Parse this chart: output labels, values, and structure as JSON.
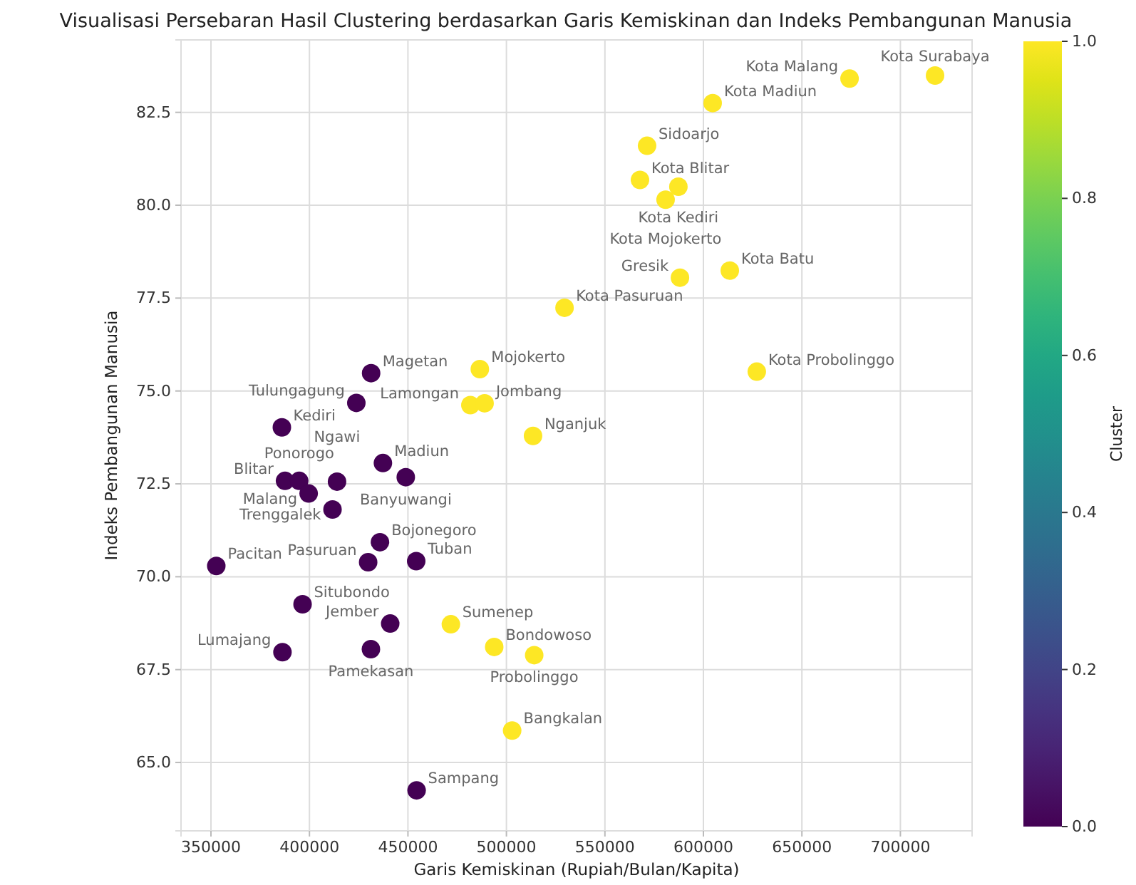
{
  "chart_data": {
    "type": "scatter",
    "title": "Visualisasi Persebaran Hasil Clustering berdasarkan Garis Kemiskinan dan Indeks Pembangunan Manusia",
    "xlabel": "Garis Kemiskinan (Rupiah/Bulan/Kapita)",
    "ylabel": "Indeks Pembangunan Manusia",
    "clabel": "Cluster",
    "xlim": [
      334800,
      736400
    ],
    "ylim": [
      63.16,
      84.45
    ],
    "xticks": [
      350000,
      400000,
      450000,
      500000,
      550000,
      600000,
      650000,
      700000
    ],
    "yticks": [
      {
        "value": 65,
        "label": "65.0"
      },
      {
        "value": 67.5,
        "label": "67.5"
      },
      {
        "value": 70,
        "label": "70.0"
      },
      {
        "value": 72.5,
        "label": "72.5"
      },
      {
        "value": 75,
        "label": "75.0"
      },
      {
        "value": 77.5,
        "label": "77.5"
      },
      {
        "value": 80,
        "label": "80.0"
      },
      {
        "value": 82.5,
        "label": "82.5"
      }
    ],
    "clim": [
      0,
      1
    ],
    "cticks": [
      {
        "value": 0,
        "label": "0.0"
      },
      {
        "value": 0.2,
        "label": "0.2"
      },
      {
        "value": 0.4,
        "label": "0.4"
      },
      {
        "value": 0.6,
        "label": "0.6"
      },
      {
        "value": 0.8,
        "label": "0.8"
      },
      {
        "value": 1,
        "label": "1.0"
      }
    ],
    "grid": true,
    "marker": "circle",
    "x": [
      717600,
      674200,
      604700,
      571400,
      567800,
      587300,
      580800,
      588100,
      613400,
      529500,
      627100,
      486500,
      481700,
      488900,
      513500,
      471800,
      493800,
      514100,
      502900,
      431300,
      423800,
      386000,
      437300,
      448900,
      387600,
      394800,
      399600,
      414000,
      411700,
      435800,
      429800,
      454200,
      352700,
      396500,
      441000,
      386300,
      431200,
      454400
    ],
    "values": [
      83.49,
      83.41,
      82.75,
      81.6,
      80.68,
      80.5,
      80.15,
      78.05,
      78.24,
      77.24,
      75.52,
      75.59,
      74.62,
      74.67,
      73.79,
      68.72,
      68.11,
      67.89,
      65.86,
      75.48,
      74.68,
      74.02,
      73.06,
      72.68,
      72.58,
      72.58,
      72.24,
      72.56,
      71.81,
      70.93,
      70.39,
      70.42,
      70.29,
      69.26,
      68.74,
      67.97,
      68.05,
      64.25
    ],
    "cvalues": [
      1,
      1,
      1,
      1,
      1,
      1,
      1,
      1,
      1,
      1,
      1,
      1,
      1,
      1,
      1,
      1,
      1,
      1,
      1,
      0,
      0,
      0,
      0,
      0,
      0,
      0,
      0,
      0,
      0,
      0,
      0,
      0,
      0,
      0,
      0,
      0,
      0,
      0
    ],
    "annotations": [
      {
        "text": "Kota Surabaya",
        "x": 717600,
        "y": 83.49
      },
      {
        "text": "Kota Malang",
        "x": 674200,
        "y": 83.41
      },
      {
        "text": "Kota Madiun",
        "x": 604700,
        "y": 82.75
      },
      {
        "text": "Sidoarjo",
        "x": 571400,
        "y": 81.6
      },
      {
        "text": "Kota Blitar",
        "x": 567800,
        "y": 80.68
      },
      {
        "text": "Kota Kediri",
        "x": 587300,
        "y": 80.5
      },
      {
        "text": "Kota Mojokerto",
        "x": 580800,
        "y": 80.15
      },
      {
        "text": "Gresik",
        "x": 588100,
        "y": 78.05
      },
      {
        "text": "Kota Batu",
        "x": 613400,
        "y": 78.24
      },
      {
        "text": "Kota Pasuruan",
        "x": 529500,
        "y": 77.24
      },
      {
        "text": "Kota Probolinggo",
        "x": 627100,
        "y": 75.52
      },
      {
        "text": "Mojokerto",
        "x": 486500,
        "y": 75.59
      },
      {
        "text": "Lamongan",
        "x": 481700,
        "y": 74.62
      },
      {
        "text": "Jombang",
        "x": 488900,
        "y": 74.67
      },
      {
        "text": "Nganjuk",
        "x": 513500,
        "y": 73.79
      },
      {
        "text": "Sumenep",
        "x": 471800,
        "y": 68.72
      },
      {
        "text": "Bondowoso",
        "x": 493800,
        "y": 68.11
      },
      {
        "text": "Probolinggo",
        "x": 514100,
        "y": 67.89
      },
      {
        "text": "Bangkalan",
        "x": 502900,
        "y": 65.86
      },
      {
        "text": "Magetan",
        "x": 431300,
        "y": 75.48
      },
      {
        "text": "Tulungagung",
        "x": 423800,
        "y": 74.68
      },
      {
        "text": "Kediri",
        "x": 386000,
        "y": 74.02
      },
      {
        "text": "Madiun",
        "x": 437300,
        "y": 73.06
      },
      {
        "text": "Banyuwangi",
        "x": 448900,
        "y": 72.68
      },
      {
        "text": "Blitar",
        "x": 387600,
        "y": 72.58
      },
      {
        "text": "Ponorogo",
        "x": 394800,
        "y": 72.58
      },
      {
        "text": "Malang",
        "x": 399600,
        "y": 72.24
      },
      {
        "text": "Ngawi",
        "x": 414000,
        "y": 72.56
      },
      {
        "text": "Trenggalek",
        "x": 411700,
        "y": 71.81
      },
      {
        "text": "Bojonegoro",
        "x": 435800,
        "y": 70.93
      },
      {
        "text": "Pasuruan",
        "x": 429800,
        "y": 70.39
      },
      {
        "text": "Tuban",
        "x": 454200,
        "y": 70.42
      },
      {
        "text": "Pacitan",
        "x": 352700,
        "y": 70.29
      },
      {
        "text": "Situbondo",
        "x": 396500,
        "y": 69.26
      },
      {
        "text": "Jember",
        "x": 441000,
        "y": 68.74
      },
      {
        "text": "Lumajang",
        "x": 386300,
        "y": 67.97
      },
      {
        "text": "Pamekasan",
        "x": 431200,
        "y": 68.05
      },
      {
        "text": "Sampang",
        "x": 454400,
        "y": 64.25
      }
    ]
  }
}
